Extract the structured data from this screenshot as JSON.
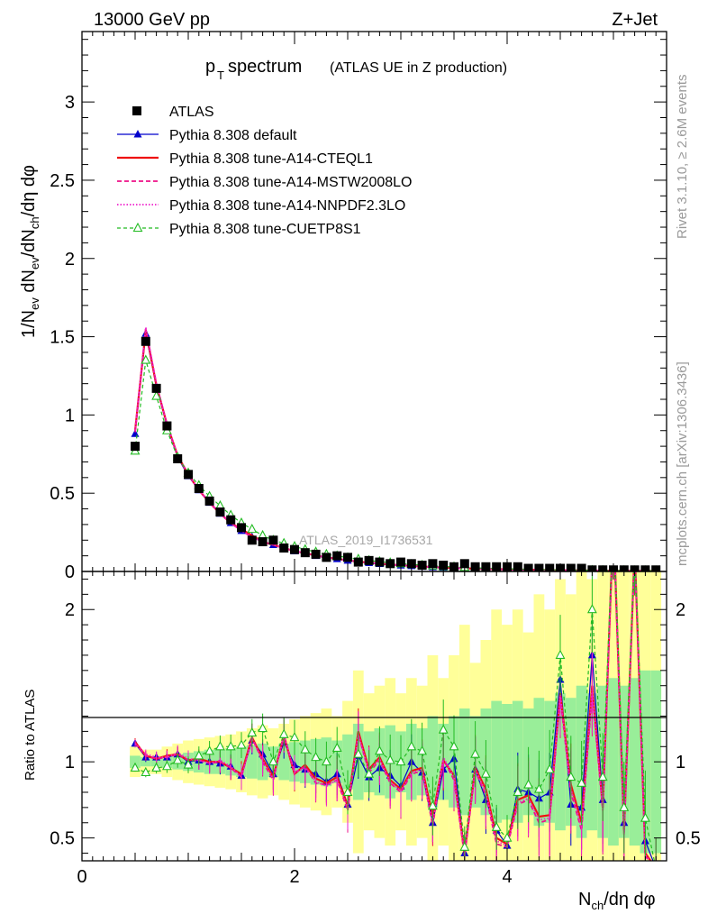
{
  "header": {
    "energy_label": "13000 GeV pp",
    "process_label": "Z+Jet"
  },
  "title": {
    "main": "p",
    "main_sub": "T",
    "main_rest": " spectrum",
    "detail": "(ATLAS UE in Z production)"
  },
  "side_labels": {
    "rivet": "Rivet 3.1.10, ≥ 2.6M events",
    "mcplots": "mcplots.cern.ch [arXiv:1306.3436]"
  },
  "watermark": "ATLAS_2019_I1736531",
  "colors": {
    "data": "#000000",
    "default": "#0000cc",
    "cteql1": "#ee1111",
    "mstw": "#ee1188",
    "nnpdf": "#ee22cc",
    "cuetp": "#22bb22",
    "band_yellow": "#ffff99",
    "band_green": "#99ee99"
  },
  "chart_data": [
    {
      "type": "scatter",
      "panel": "main",
      "title": "pT spectrum (ATLAS UE in Z production)",
      "xlabel": "N_ch/dη dφ",
      "ylabel": "1/N_ev dN_ev/dN_ch/dη dφ",
      "xlim": [
        0,
        5.5
      ],
      "ylim": [
        0,
        3.45
      ],
      "y_ticks": [
        "0",
        "0.5",
        "1",
        "1.5",
        "2",
        "2.5",
        "3"
      ],
      "legend_position": "top-left",
      "legend": [
        {
          "key": "data",
          "label": "ATLAS",
          "style": "square-marker"
        },
        {
          "key": "default",
          "label": "Pythia 8.308 default",
          "style": "solid-triangle"
        },
        {
          "key": "cteql1",
          "label": "Pythia 8.308 tune-A14-CTEQL1",
          "style": "solid-thick"
        },
        {
          "key": "mstw",
          "label": "Pythia 8.308 tune-A14-MSTW2008LO",
          "style": "dashed"
        },
        {
          "key": "nnpdf",
          "label": "Pythia 8.308 tune-A14-NNPDF2.3LO",
          "style": "dotted"
        },
        {
          "key": "cuetp",
          "label": "Pythia 8.308 tune-CUETP8S1",
          "style": "dashed-open-triangle"
        }
      ],
      "x": [
        0.5,
        0.6,
        0.7,
        0.8,
        0.9,
        1.0,
        1.1,
        1.2,
        1.3,
        1.4,
        1.5,
        1.6,
        1.7,
        1.8,
        1.9,
        2.0,
        2.1,
        2.2,
        2.3,
        2.4,
        2.5,
        2.6,
        2.7,
        2.8,
        2.9,
        3.0,
        3.1,
        3.2,
        3.3,
        3.4,
        3.5,
        3.6,
        3.7,
        3.8,
        3.9,
        4.0,
        4.1,
        4.2,
        4.3,
        4.4,
        4.5,
        4.6,
        4.7,
        4.8,
        4.9,
        5.0,
        5.1,
        5.2,
        5.3,
        5.4
      ],
      "series": [
        {
          "key": "data",
          "name": "ATLAS",
          "values": [
            0.8,
            1.47,
            1.17,
            0.93,
            0.72,
            0.62,
            0.53,
            0.45,
            0.38,
            0.33,
            0.28,
            0.2,
            0.19,
            0.2,
            0.15,
            0.14,
            0.12,
            0.11,
            0.09,
            0.1,
            0.09,
            0.06,
            0.07,
            0.06,
            0.05,
            0.06,
            0.05,
            0.04,
            0.05,
            0.04,
            0.03,
            0.05,
            0.03,
            0.03,
            0.03,
            0.03,
            0.03,
            0.02,
            0.02,
            0.02,
            0.02,
            0.02,
            0.02,
            0.01,
            0.01,
            0.01,
            0.01,
            0.01,
            0.01,
            0.01
          ]
        },
        {
          "key": "default",
          "name": "Pythia 8.308 default",
          "values": [
            0.88,
            1.52,
            1.18,
            0.93,
            0.73,
            0.61,
            0.52,
            0.44,
            0.37,
            0.31,
            0.26,
            0.22,
            0.19,
            0.17,
            0.15,
            0.13,
            0.115,
            0.1,
            0.09,
            0.08,
            0.07,
            0.062,
            0.055,
            0.049,
            0.044,
            0.039,
            0.035,
            0.031,
            0.028,
            0.025,
            0.022,
            0.02,
            0.018,
            0.016,
            0.014,
            0.013,
            0.012,
            0.011,
            0.01,
            0.009,
            0.008,
            0.007,
            0.0065,
            0.006,
            0.0055,
            0.005,
            0.0045,
            0.004,
            0.0036,
            0.0032
          ]
        },
        {
          "key": "cteql1",
          "name": "Pythia 8.308 tune-A14-CTEQL1",
          "values": [
            0.9,
            1.54,
            1.19,
            0.94,
            0.74,
            0.62,
            0.52,
            0.44,
            0.37,
            0.31,
            0.27,
            0.23,
            0.19,
            0.17,
            0.15,
            0.13,
            0.117,
            0.102,
            0.09,
            0.081,
            0.071,
            0.063,
            0.056,
            0.05,
            0.044,
            0.04,
            0.035,
            0.032,
            0.028,
            0.025,
            0.022,
            0.02,
            0.018,
            0.016,
            0.015,
            0.013,
            0.012,
            0.011,
            0.01,
            0.009,
            0.008,
            0.007,
            0.0066,
            0.006,
            0.0055,
            0.005,
            0.0045,
            0.004,
            0.0036,
            0.0032
          ]
        },
        {
          "key": "mstw",
          "name": "Pythia 8.308 tune-A14-MSTW2008LO",
          "values": [
            0.89,
            1.55,
            1.2,
            0.94,
            0.74,
            0.62,
            0.52,
            0.44,
            0.37,
            0.31,
            0.26,
            0.22,
            0.19,
            0.17,
            0.15,
            0.13,
            0.116,
            0.101,
            0.09,
            0.08,
            0.07,
            0.062,
            0.055,
            0.049,
            0.044,
            0.039,
            0.035,
            0.031,
            0.028,
            0.025,
            0.022,
            0.02,
            0.018,
            0.016,
            0.014,
            0.013,
            0.012,
            0.011,
            0.01,
            0.009,
            0.008,
            0.007,
            0.0065,
            0.006,
            0.0055,
            0.005,
            0.0045,
            0.004,
            0.0036,
            0.0032
          ]
        },
        {
          "key": "nnpdf",
          "name": "Pythia 8.308 tune-A14-NNPDF2.3LO",
          "values": [
            0.9,
            1.56,
            1.2,
            0.94,
            0.74,
            0.62,
            0.52,
            0.44,
            0.37,
            0.31,
            0.26,
            0.22,
            0.19,
            0.17,
            0.15,
            0.13,
            0.116,
            0.101,
            0.09,
            0.08,
            0.07,
            0.062,
            0.055,
            0.049,
            0.044,
            0.039,
            0.035,
            0.031,
            0.028,
            0.025,
            0.022,
            0.02,
            0.018,
            0.016,
            0.014,
            0.013,
            0.012,
            0.011,
            0.01,
            0.009,
            0.008,
            0.007,
            0.0065,
            0.006,
            0.0055,
            0.005,
            0.0045,
            0.004,
            0.0036,
            0.0032
          ]
        },
        {
          "key": "cuetp",
          "name": "Pythia 8.308 tune-CUETP8S1",
          "values": [
            0.77,
            1.35,
            1.12,
            0.9,
            0.73,
            0.63,
            0.55,
            0.48,
            0.42,
            0.36,
            0.31,
            0.27,
            0.23,
            0.2,
            0.18,
            0.16,
            0.14,
            0.125,
            0.11,
            0.1,
            0.088,
            0.079,
            0.07,
            0.063,
            0.056,
            0.05,
            0.045,
            0.04,
            0.036,
            0.032,
            0.029,
            0.026,
            0.023,
            0.021,
            0.019,
            0.017,
            0.015,
            0.014,
            0.012,
            0.011,
            0.01,
            0.009,
            0.008,
            0.0075,
            0.0068,
            0.006,
            0.0055,
            0.005,
            0.0045,
            0.004
          ]
        }
      ]
    },
    {
      "type": "line",
      "panel": "ratio",
      "xlabel": "N_ch/dη dφ",
      "ylabel": "Ratio to ATLAS",
      "xlim": [
        0,
        5.5
      ],
      "ylim": [
        0.35,
        2.25
      ],
      "x_ticks": [
        "0",
        "2",
        "4"
      ],
      "y_ticks": [
        "0.5",
        "1",
        "2"
      ],
      "x": [
        0.5,
        0.6,
        0.7,
        0.8,
        0.9,
        1.0,
        1.1,
        1.2,
        1.3,
        1.4,
        1.5,
        1.6,
        1.7,
        1.8,
        1.9,
        2.0,
        2.1,
        2.2,
        2.3,
        2.4,
        2.5,
        2.6,
        2.7,
        2.8,
        2.9,
        3.0,
        3.1,
        3.2,
        3.3,
        3.4,
        3.5,
        3.6,
        3.7,
        3.8,
        3.9,
        4.0,
        4.1,
        4.2,
        4.3,
        4.4,
        4.5,
        4.6,
        4.7,
        4.8,
        4.9,
        5.0,
        5.1,
        5.2,
        5.3,
        5.4
      ],
      "band_green_half_width": [
        0.04,
        0.03,
        0.03,
        0.04,
        0.05,
        0.06,
        0.07,
        0.08,
        0.08,
        0.09,
        0.1,
        0.11,
        0.12,
        0.1,
        0.12,
        0.13,
        0.14,
        0.15,
        0.16,
        0.14,
        0.18,
        0.25,
        0.2,
        0.22,
        0.24,
        0.2,
        0.25,
        0.22,
        0.3,
        0.25,
        0.3,
        0.35,
        0.3,
        0.35,
        0.4,
        0.38,
        0.4,
        0.35,
        0.42,
        0.4,
        0.45,
        0.42,
        0.5,
        0.45,
        0.5,
        0.55,
        0.5,
        0.55,
        0.6,
        0.6
      ],
      "band_yellow_half_width": [
        0.1,
        0.08,
        0.08,
        0.1,
        0.12,
        0.14,
        0.15,
        0.16,
        0.17,
        0.18,
        0.2,
        0.22,
        0.24,
        0.22,
        0.25,
        0.28,
        0.3,
        0.32,
        0.35,
        0.3,
        0.4,
        0.6,
        0.45,
        0.5,
        0.55,
        0.45,
        0.55,
        0.5,
        0.7,
        0.55,
        0.7,
        0.9,
        0.65,
        0.8,
        1.0,
        0.9,
        1.0,
        0.85,
        1.1,
        1.0,
        1.2,
        1.1,
        1.3,
        1.2,
        1.4,
        1.5,
        1.3,
        1.5,
        1.6,
        1.6
      ],
      "series": [
        {
          "key": "default",
          "name": "Pythia 8.308 default",
          "values": [
            1.12,
            1.03,
            1.03,
            1.03,
            1.05,
            1.0,
            1.01,
            1.0,
            0.99,
            0.97,
            0.91,
            1.14,
            1.05,
            0.92,
            1.13,
            0.98,
            0.95,
            0.92,
            0.87,
            0.92,
            0.72,
            1.04,
            0.9,
            0.96,
            0.91,
            0.84,
            1.0,
            0.93,
            0.6,
            0.95,
            1.02,
            0.4,
            0.95,
            0.75,
            0.55,
            0.45,
            0.82,
            0.8,
            0.76,
            0.8,
            1.54,
            0.72,
            0.7,
            1.7,
            0.75,
            2.5,
            0.6,
            2.4,
            0.48,
            0.3
          ]
        },
        {
          "key": "cteql1",
          "name": "Pythia 8.308 tune-A14-CTEQL1",
          "values": [
            1.13,
            1.04,
            1.02,
            1.04,
            1.05,
            1.01,
            1.02,
            1.0,
            1.0,
            0.96,
            0.92,
            1.16,
            1.02,
            0.9,
            1.17,
            0.92,
            0.98,
            0.89,
            0.86,
            0.9,
            0.71,
            1.2,
            0.95,
            1.03,
            0.88,
            0.82,
            0.94,
            0.96,
            0.64,
            1.01,
            0.91,
            0.4,
            0.96,
            0.82,
            0.5,
            0.46,
            0.75,
            0.78,
            0.64,
            0.65,
            1.45,
            0.85,
            0.6,
            1.5,
            0.7,
            2.6,
            0.55,
            2.4,
            0.4,
            0.3
          ]
        },
        {
          "key": "mstw",
          "name": "Pythia 8.308 tune-A14-MSTW2008LO",
          "values": [
            1.12,
            1.04,
            1.02,
            1.03,
            1.05,
            1.01,
            1.01,
            0.99,
            1.0,
            0.96,
            0.9,
            1.16,
            1.0,
            0.88,
            1.18,
            0.93,
            0.97,
            0.86,
            0.85,
            0.88,
            0.68,
            1.18,
            0.93,
            1.01,
            0.86,
            0.8,
            0.92,
            0.94,
            0.58,
            1.02,
            0.88,
            0.38,
            0.94,
            0.78,
            0.46,
            0.44,
            0.72,
            0.75,
            0.6,
            0.62,
            1.42,
            0.8,
            0.55,
            1.45,
            0.68,
            2.6,
            0.52,
            2.4,
            0.38,
            0.3
          ]
        },
        {
          "key": "nnpdf",
          "name": "Pythia 8.308 tune-A14-NNPDF2.3LO",
          "values": [
            1.12,
            1.05,
            1.03,
            1.03,
            1.06,
            1.02,
            1.01,
            0.99,
            1.01,
            0.97,
            0.9,
            1.15,
            1.01,
            0.89,
            1.17,
            0.93,
            0.96,
            0.87,
            0.84,
            0.88,
            0.7,
            1.18,
            0.94,
            1.02,
            0.87,
            0.81,
            0.93,
            0.95,
            0.6,
            1.03,
            0.9,
            0.39,
            0.95,
            0.8,
            0.48,
            0.45,
            0.73,
            0.76,
            0.62,
            0.63,
            1.44,
            0.82,
            0.57,
            1.47,
            0.69,
            2.6,
            0.53,
            2.4,
            0.39,
            0.3
          ]
        },
        {
          "key": "cuetp",
          "name": "Pythia 8.308 tune-CUETP8S1",
          "values": [
            0.96,
            0.93,
            0.96,
            0.97,
            1.01,
            0.98,
            1.04,
            1.07,
            1.1,
            1.1,
            1.11,
            1.19,
            1.22,
            1.0,
            1.18,
            1.16,
            1.08,
            1.03,
            1.0,
            1.09,
            0.8,
            1.05,
            0.92,
            1.07,
            1.01,
            1.0,
            1.1,
            1.07,
            0.71,
            1.21,
            1.1,
            0.44,
            1.05,
            0.92,
            0.57,
            0.5,
            0.8,
            0.85,
            0.82,
            0.95,
            1.7,
            0.9,
            0.86,
            2.0,
            0.9,
            2.6,
            0.7,
            2.4,
            0.63,
            0.3
          ]
        }
      ]
    }
  ]
}
